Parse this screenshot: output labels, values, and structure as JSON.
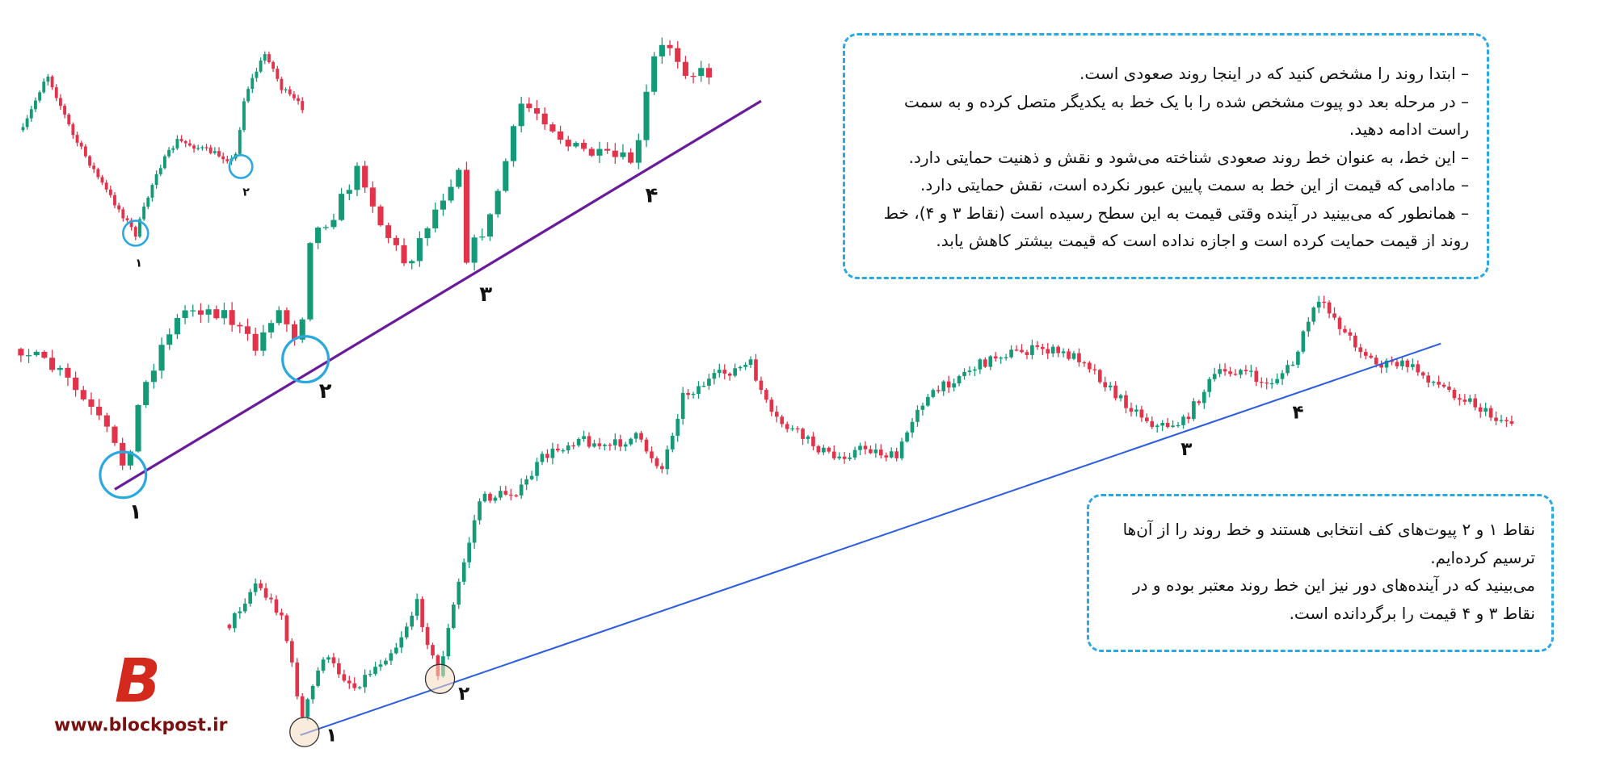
{
  "small_chart": {
    "points": [
      "۱",
      "۲"
    ]
  },
  "middle_chart": {
    "points": [
      "۱",
      "۲",
      "۳",
      "۴"
    ]
  },
  "bottom_chart": {
    "points": [
      "۱",
      "۲",
      "۳",
      "۴"
    ]
  },
  "info_box": {
    "lines": [
      "– ابتدا روند را مشخص کنید که در اینجا روند صعودی است.",
      "– در مرحله بعد دو پیوت مشخص شده را با یک خط به یکدیگر متصل کرده و به سمت راست ادامه دهید.",
      "– این خط، به عنوان خط روند صعودی شناخته می‌شود و نقش و ذهنیت حمایتی دارد.",
      "– مادامی که قیمت از این خط به سمت پایین عبور نکرده است، نقش حمایتی دارد.",
      "– همانطور که می‌بینید در آینده وقتی قیمت به این سطح رسیده است (نقاط ۳ و ۴)، خط روند از قیمت حمایت کرده است و اجازه نداده است که قیمت بیشتر کاهش یابد."
    ]
  },
  "summary_box": {
    "lines": [
      "نقاط ۱ و ۲ پیوت‌های کف انتخابی هستند و خط روند را از آن‌ها ترسیم کرده‌ایم.",
      "می‌بینید که در آینده‌های دور نیز این خط روند معتبر بوده و در نقاط ۳ و ۴ قیمت را برگردانده است."
    ]
  },
  "logo": {
    "letter": "B",
    "url": "www.blockpost.ir"
  }
}
